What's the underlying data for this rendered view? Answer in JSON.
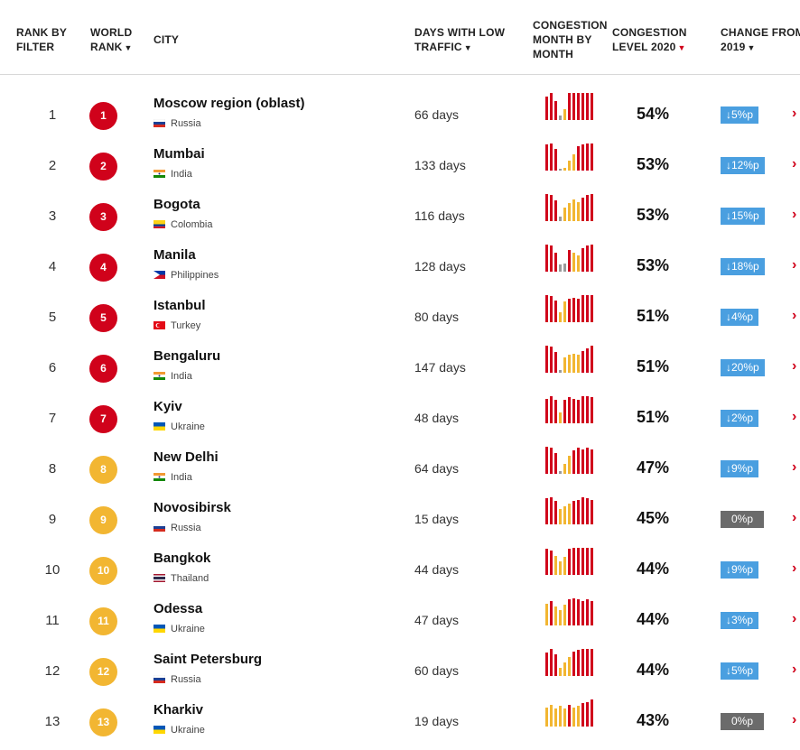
{
  "header": {
    "rank_by_filter": [
      "RANK BY",
      "FILTER"
    ],
    "world_rank": [
      "WORLD",
      "RANK"
    ],
    "city": "CITY",
    "days_low_traffic": [
      "DAYS WITH LOW",
      "TRAFFIC"
    ],
    "congestion_month": [
      "CONGESTION",
      "MONTH BY",
      "MONTH"
    ],
    "congestion_level": [
      "CONGESTION",
      "LEVEL 2020"
    ],
    "change_from": [
      "CHANGE FROM",
      "2019"
    ]
  },
  "colors": {
    "red": "#d0021b",
    "amber": "#f2b632",
    "change_blue": "#4a9fe0",
    "change_grey": "#6b6b6b"
  },
  "rows": [
    {
      "rank": "1",
      "world_rank": "1",
      "badge": "red",
      "city": "Moscow region (oblast)",
      "country": "Russia",
      "flag": "russia",
      "days": "66 days",
      "level": "54%",
      "change": "↓5%p",
      "zero": false,
      "months": [
        {
          "v": 0.85,
          "c": "red"
        },
        {
          "v": 1.0,
          "c": "red"
        },
        {
          "v": 0.7,
          "c": "red"
        },
        {
          "v": 0.15,
          "c": "gray"
        },
        {
          "v": 0.4,
          "c": "amber"
        },
        {
          "v": 1.0,
          "c": "red"
        },
        {
          "v": 1.0,
          "c": "red"
        },
        {
          "v": 1.0,
          "c": "red"
        },
        {
          "v": 1.0,
          "c": "red"
        },
        {
          "v": 1.0,
          "c": "red"
        },
        {
          "v": 1.0,
          "c": "red"
        }
      ]
    },
    {
      "rank": "2",
      "world_rank": "2",
      "badge": "red",
      "city": "Mumbai",
      "country": "India",
      "flag": "india",
      "days": "133 days",
      "level": "53%",
      "change": "↓12%p",
      "zero": false,
      "months": [
        {
          "v": 0.95,
          "c": "red"
        },
        {
          "v": 1.0,
          "c": "red"
        },
        {
          "v": 0.8,
          "c": "red"
        },
        {
          "v": 0.0,
          "c": "gray"
        },
        {
          "v": 0.1,
          "c": "amber"
        },
        {
          "v": 0.35,
          "c": "amber"
        },
        {
          "v": 0.6,
          "c": "amber"
        },
        {
          "v": 0.9,
          "c": "red"
        },
        {
          "v": 0.95,
          "c": "red"
        },
        {
          "v": 1.0,
          "c": "red"
        },
        {
          "v": 1.0,
          "c": "red"
        }
      ]
    },
    {
      "rank": "3",
      "world_rank": "3",
      "badge": "red",
      "city": "Bogota",
      "country": "Colombia",
      "flag": "colombia",
      "days": "116 days",
      "level": "53%",
      "change": "↓15%p",
      "zero": false,
      "months": [
        {
          "v": 1.0,
          "c": "red"
        },
        {
          "v": 0.95,
          "c": "red"
        },
        {
          "v": 0.75,
          "c": "red"
        },
        {
          "v": 0.15,
          "c": "gray"
        },
        {
          "v": 0.5,
          "c": "amber"
        },
        {
          "v": 0.65,
          "c": "amber"
        },
        {
          "v": 0.8,
          "c": "amber"
        },
        {
          "v": 0.7,
          "c": "amber"
        },
        {
          "v": 0.85,
          "c": "red"
        },
        {
          "v": 0.95,
          "c": "red"
        },
        {
          "v": 1.0,
          "c": "red"
        }
      ]
    },
    {
      "rank": "4",
      "world_rank": "4",
      "badge": "red",
      "city": "Manila",
      "country": "Philippines",
      "flag": "philippines",
      "days": "128 days",
      "level": "53%",
      "change": "↓18%p",
      "zero": false,
      "months": [
        {
          "v": 1.0,
          "c": "red"
        },
        {
          "v": 0.95,
          "c": "red"
        },
        {
          "v": 0.7,
          "c": "red"
        },
        {
          "v": 0.25,
          "c": "gray"
        },
        {
          "v": 0.3,
          "c": "gray"
        },
        {
          "v": 0.8,
          "c": "red"
        },
        {
          "v": 0.7,
          "c": "amber"
        },
        {
          "v": 0.6,
          "c": "amber"
        },
        {
          "v": 0.85,
          "c": "red"
        },
        {
          "v": 0.95,
          "c": "red"
        },
        {
          "v": 1.0,
          "c": "red"
        }
      ]
    },
    {
      "rank": "5",
      "world_rank": "5",
      "badge": "red",
      "city": "Istanbul",
      "country": "Turkey",
      "flag": "turkey",
      "days": "80 days",
      "level": "51%",
      "change": "↓4%p",
      "zero": false,
      "months": [
        {
          "v": 1.0,
          "c": "red"
        },
        {
          "v": 0.95,
          "c": "red"
        },
        {
          "v": 0.8,
          "c": "red"
        },
        {
          "v": 0.35,
          "c": "amber"
        },
        {
          "v": 0.75,
          "c": "amber"
        },
        {
          "v": 0.85,
          "c": "red"
        },
        {
          "v": 0.9,
          "c": "red"
        },
        {
          "v": 0.85,
          "c": "red"
        },
        {
          "v": 1.0,
          "c": "red"
        },
        {
          "v": 1.0,
          "c": "red"
        },
        {
          "v": 1.0,
          "c": "red"
        }
      ]
    },
    {
      "rank": "6",
      "world_rank": "6",
      "badge": "red",
      "city": "Bengaluru",
      "country": "India",
      "flag": "india",
      "days": "147 days",
      "level": "51%",
      "change": "↓20%p",
      "zero": false,
      "months": [
        {
          "v": 1.0,
          "c": "red"
        },
        {
          "v": 0.95,
          "c": "red"
        },
        {
          "v": 0.75,
          "c": "red"
        },
        {
          "v": 0.1,
          "c": "gray"
        },
        {
          "v": 0.55,
          "c": "amber"
        },
        {
          "v": 0.65,
          "c": "amber"
        },
        {
          "v": 0.7,
          "c": "amber"
        },
        {
          "v": 0.65,
          "c": "amber"
        },
        {
          "v": 0.8,
          "c": "red"
        },
        {
          "v": 0.9,
          "c": "red"
        },
        {
          "v": 1.0,
          "c": "red"
        }
      ]
    },
    {
      "rank": "7",
      "world_rank": "7",
      "badge": "red",
      "city": "Kyiv",
      "country": "Ukraine",
      "flag": "ukraine",
      "days": "48 days",
      "level": "51%",
      "change": "↓2%p",
      "zero": false,
      "months": [
        {
          "v": 0.9,
          "c": "red"
        },
        {
          "v": 1.0,
          "c": "red"
        },
        {
          "v": 0.85,
          "c": "red"
        },
        {
          "v": 0.4,
          "c": "amber"
        },
        {
          "v": 0.85,
          "c": "red"
        },
        {
          "v": 0.95,
          "c": "red"
        },
        {
          "v": 0.9,
          "c": "red"
        },
        {
          "v": 0.85,
          "c": "red"
        },
        {
          "v": 1.0,
          "c": "red"
        },
        {
          "v": 1.0,
          "c": "red"
        },
        {
          "v": 0.95,
          "c": "red"
        }
      ]
    },
    {
      "rank": "8",
      "world_rank": "8",
      "badge": "amber",
      "city": "New Delhi",
      "country": "India",
      "flag": "india",
      "days": "64 days",
      "level": "47%",
      "change": "↓9%p",
      "zero": false,
      "months": [
        {
          "v": 1.0,
          "c": "red"
        },
        {
          "v": 0.95,
          "c": "red"
        },
        {
          "v": 0.75,
          "c": "red"
        },
        {
          "v": 0.1,
          "c": "gray"
        },
        {
          "v": 0.35,
          "c": "amber"
        },
        {
          "v": 0.65,
          "c": "amber"
        },
        {
          "v": 0.85,
          "c": "red"
        },
        {
          "v": 0.95,
          "c": "red"
        },
        {
          "v": 0.9,
          "c": "red"
        },
        {
          "v": 0.95,
          "c": "red"
        },
        {
          "v": 0.9,
          "c": "red"
        }
      ]
    },
    {
      "rank": "9",
      "world_rank": "9",
      "badge": "amber",
      "city": "Novosibirsk",
      "country": "Russia",
      "flag": "russia",
      "days": "15 days",
      "level": "45%",
      "change": "0%p",
      "zero": true,
      "months": [
        {
          "v": 0.95,
          "c": "red"
        },
        {
          "v": 1.0,
          "c": "red"
        },
        {
          "v": 0.85,
          "c": "red"
        },
        {
          "v": 0.55,
          "c": "amber"
        },
        {
          "v": 0.65,
          "c": "amber"
        },
        {
          "v": 0.75,
          "c": "amber"
        },
        {
          "v": 0.85,
          "c": "red"
        },
        {
          "v": 0.9,
          "c": "red"
        },
        {
          "v": 1.0,
          "c": "red"
        },
        {
          "v": 0.95,
          "c": "red"
        },
        {
          "v": 0.9,
          "c": "red"
        }
      ]
    },
    {
      "rank": "10",
      "world_rank": "10",
      "badge": "amber",
      "city": "Bangkok",
      "country": "Thailand",
      "flag": "thailand",
      "days": "44 days",
      "level": "44%",
      "change": "↓9%p",
      "zero": false,
      "months": [
        {
          "v": 0.95,
          "c": "red"
        },
        {
          "v": 0.9,
          "c": "red"
        },
        {
          "v": 0.7,
          "c": "amber"
        },
        {
          "v": 0.5,
          "c": "amber"
        },
        {
          "v": 0.65,
          "c": "amber"
        },
        {
          "v": 0.95,
          "c": "red"
        },
        {
          "v": 1.0,
          "c": "red"
        },
        {
          "v": 1.0,
          "c": "red"
        },
        {
          "v": 1.0,
          "c": "red"
        },
        {
          "v": 1.0,
          "c": "red"
        },
        {
          "v": 1.0,
          "c": "red"
        }
      ]
    },
    {
      "rank": "11",
      "world_rank": "11",
      "badge": "amber",
      "city": "Odessa",
      "country": "Ukraine",
      "flag": "ukraine",
      "days": "47 days",
      "level": "44%",
      "change": "↓3%p",
      "zero": false,
      "months": [
        {
          "v": 0.8,
          "c": "amber"
        },
        {
          "v": 0.9,
          "c": "red"
        },
        {
          "v": 0.7,
          "c": "amber"
        },
        {
          "v": 0.55,
          "c": "amber"
        },
        {
          "v": 0.75,
          "c": "amber"
        },
        {
          "v": 0.95,
          "c": "red"
        },
        {
          "v": 1.0,
          "c": "red"
        },
        {
          "v": 0.95,
          "c": "red"
        },
        {
          "v": 0.9,
          "c": "red"
        },
        {
          "v": 0.95,
          "c": "red"
        },
        {
          "v": 0.9,
          "c": "red"
        }
      ]
    },
    {
      "rank": "12",
      "world_rank": "12",
      "badge": "amber",
      "city": "Saint Petersburg",
      "country": "Russia",
      "flag": "russia",
      "days": "60 days",
      "level": "44%",
      "change": "↓5%p",
      "zero": false,
      "months": [
        {
          "v": 0.85,
          "c": "red"
        },
        {
          "v": 1.0,
          "c": "red"
        },
        {
          "v": 0.8,
          "c": "red"
        },
        {
          "v": 0.3,
          "c": "amber"
        },
        {
          "v": 0.5,
          "c": "amber"
        },
        {
          "v": 0.7,
          "c": "amber"
        },
        {
          "v": 0.9,
          "c": "red"
        },
        {
          "v": 0.95,
          "c": "red"
        },
        {
          "v": 1.0,
          "c": "red"
        },
        {
          "v": 1.0,
          "c": "red"
        },
        {
          "v": 1.0,
          "c": "red"
        }
      ]
    },
    {
      "rank": "13",
      "world_rank": "13",
      "badge": "amber",
      "city": "Kharkiv",
      "country": "Ukraine",
      "flag": "ukraine",
      "days": "19 days",
      "level": "43%",
      "change": "0%p",
      "zero": true,
      "months": [
        {
          "v": 0.7,
          "c": "amber"
        },
        {
          "v": 0.8,
          "c": "amber"
        },
        {
          "v": 0.65,
          "c": "amber"
        },
        {
          "v": 0.75,
          "c": "amber"
        },
        {
          "v": 0.65,
          "c": "amber"
        },
        {
          "v": 0.8,
          "c": "red"
        },
        {
          "v": 0.7,
          "c": "amber"
        },
        {
          "v": 0.75,
          "c": "amber"
        },
        {
          "v": 0.85,
          "c": "red"
        },
        {
          "v": 0.9,
          "c": "red"
        },
        {
          "v": 1.0,
          "c": "red"
        }
      ]
    }
  ]
}
